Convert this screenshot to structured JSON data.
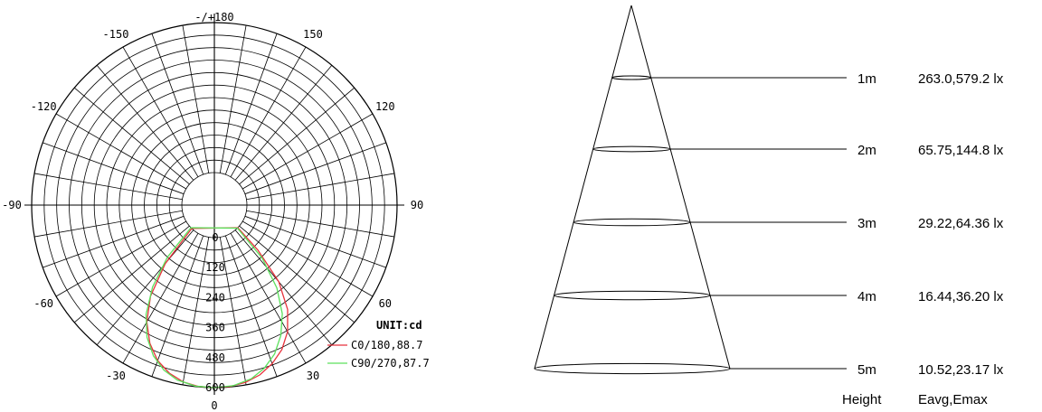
{
  "polar": {
    "angle_labels": [
      {
        "text": "-/+180",
        "angle": 180
      },
      {
        "text": "150",
        "angle": 150
      },
      {
        "text": "-150",
        "angle": -150
      },
      {
        "text": "120",
        "angle": 120
      },
      {
        "text": "-120",
        "angle": -120
      },
      {
        "text": "90",
        "angle": 90
      },
      {
        "text": "-90",
        "angle": -90
      },
      {
        "text": "60",
        "angle": 60
      },
      {
        "text": "-60",
        "angle": -60
      },
      {
        "text": "30",
        "angle": 30
      },
      {
        "text": "-30",
        "angle": -30
      },
      {
        "text": "0",
        "angle": 0
      }
    ],
    "radial_labels": [
      "0",
      "120",
      "240",
      "360",
      "480",
      "600"
    ],
    "unit_label": "UNIT:cd",
    "legend": [
      {
        "label": "C0/180,88.7",
        "color": "#e8323c"
      },
      {
        "label": "C90/270,87.7",
        "color": "#5ce05c"
      }
    ]
  },
  "chart_data": {
    "type": "polar",
    "radial_unit": "cd",
    "radial_max": 600,
    "radial_ticks": [
      0,
      120,
      240,
      360,
      480,
      600
    ],
    "angle_ticks_deg": [
      0,
      30,
      60,
      90,
      120,
      150,
      180,
      -150,
      -120,
      -90,
      -60,
      -30
    ],
    "series": [
      {
        "name": "C0/180,88.7",
        "color": "#e8323c",
        "points": [
          [
            -44,
            0
          ],
          [
            -40,
            175
          ],
          [
            -35,
            315
          ],
          [
            -30,
            410
          ],
          [
            -25,
            480
          ],
          [
            -20,
            532
          ],
          [
            -15,
            566
          ],
          [
            -10,
            588
          ],
          [
            -5,
            598
          ],
          [
            0,
            600
          ],
          [
            5,
            598
          ],
          [
            10,
            590
          ],
          [
            15,
            573
          ],
          [
            20,
            545
          ],
          [
            25,
            508
          ],
          [
            30,
            455
          ],
          [
            35,
            380
          ],
          [
            40,
            270
          ],
          [
            44,
            120
          ],
          [
            46,
            0
          ]
        ]
      },
      {
        "name": "C90/270,87.7",
        "color": "#5ce05c",
        "points": [
          [
            -46,
            0
          ],
          [
            -42,
            150
          ],
          [
            -37,
            280
          ],
          [
            -32,
            385
          ],
          [
            -27,
            463
          ],
          [
            -22,
            520
          ],
          [
            -17,
            560
          ],
          [
            -12,
            585
          ],
          [
            -6,
            598
          ],
          [
            0,
            600
          ],
          [
            6,
            596
          ],
          [
            12,
            580
          ],
          [
            17,
            552
          ],
          [
            22,
            512
          ],
          [
            27,
            455
          ],
          [
            32,
            382
          ],
          [
            37,
            285
          ],
          [
            42,
            155
          ],
          [
            45,
            0
          ]
        ]
      }
    ]
  },
  "cone": {
    "rows": [
      {
        "height": "1m",
        "value": "263.0,579.2 lx"
      },
      {
        "height": "2m",
        "value": "65.75,144.8 lx"
      },
      {
        "height": "3m",
        "value": "29.22,64.36 lx"
      },
      {
        "height": "4m",
        "value": "16.44,36.20 lx"
      },
      {
        "height": "5m",
        "value": "10.52,23.17 lx"
      }
    ],
    "footer": {
      "height_label": "Height",
      "value_label": "Eavg,Emax"
    }
  }
}
